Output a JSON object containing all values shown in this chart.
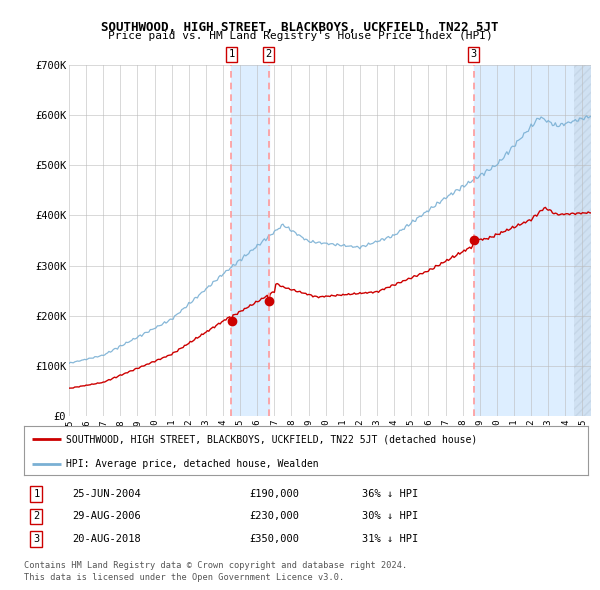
{
  "title": "SOUTHWOOD, HIGH STREET, BLACKBOYS, UCKFIELD, TN22 5JT",
  "subtitle": "Price paid vs. HM Land Registry's House Price Index (HPI)",
  "legend_red": "SOUTHWOOD, HIGH STREET, BLACKBOYS, UCKFIELD, TN22 5JT (detached house)",
  "legend_blue": "HPI: Average price, detached house, Wealden",
  "footer1": "Contains HM Land Registry data © Crown copyright and database right 2024.",
  "footer2": "This data is licensed under the Open Government Licence v3.0.",
  "transactions": [
    {
      "num": 1,
      "date": "25-JUN-2004",
      "price": 190000,
      "hpi_pct": "36% ↓ HPI",
      "x": 2004.49
    },
    {
      "num": 2,
      "date": "29-AUG-2006",
      "price": 230000,
      "hpi_pct": "30% ↓ HPI",
      "x": 2006.66
    },
    {
      "num": 3,
      "date": "20-AUG-2018",
      "price": 350000,
      "hpi_pct": "31% ↓ HPI",
      "x": 2018.64
    }
  ],
  "red_color": "#cc0000",
  "blue_color": "#7ab0d4",
  "vline_color": "#ff9999",
  "shading_color": "#ddeeff",
  "grid_color": "#bbbbbb",
  "background_color": "#ffffff",
  "ylim": [
    0,
    700000
  ],
  "xlim_start": 1995.0,
  "xlim_end": 2025.5
}
